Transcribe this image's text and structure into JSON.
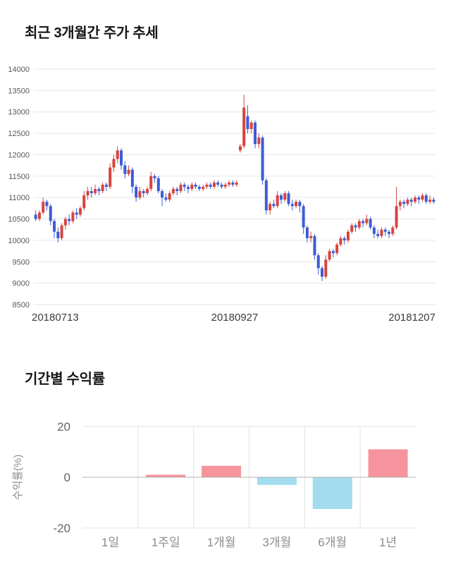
{
  "chart_data": [
    {
      "type": "candlestick",
      "title": "최근 3개월간 주가 추세",
      "ylim": [
        8500,
        14000
      ],
      "yticks": [
        8500,
        9000,
        9500,
        10000,
        10500,
        11000,
        11500,
        12000,
        12500,
        13000,
        13500,
        14000
      ],
      "xticks": [
        "20180713",
        "20180927",
        "20181207"
      ],
      "up_color": "#d6453f",
      "down_color": "#3d5cd6",
      "grid_color": "#e6e6e6",
      "ytick_color": "#595959",
      "xtick_color": "#3c3c3c",
      "candles": [
        [
          10600,
          10700,
          10450,
          10500
        ],
        [
          10500,
          10700,
          10450,
          10650
        ],
        [
          10650,
          11000,
          10600,
          10900
        ],
        [
          10900,
          10950,
          10700,
          10800
        ],
        [
          10800,
          10850,
          10350,
          10450
        ],
        [
          10450,
          10500,
          10050,
          10200
        ],
        [
          10200,
          10300,
          9950,
          10050
        ],
        [
          10050,
          10400,
          10000,
          10350
        ],
        [
          10350,
          10550,
          10250,
          10500
        ],
        [
          10500,
          10600,
          10350,
          10450
        ],
        [
          10450,
          10700,
          10400,
          10650
        ],
        [
          10650,
          10750,
          10500,
          10600
        ],
        [
          10600,
          10800,
          10550,
          10750
        ],
        [
          10750,
          11150,
          10700,
          11050
        ],
        [
          11050,
          11250,
          10950,
          11150
        ],
        [
          11150,
          11250,
          11000,
          11100
        ],
        [
          11100,
          11300,
          11050,
          11200
        ],
        [
          11200,
          11250,
          11050,
          11150
        ],
        [
          11150,
          11350,
          11100,
          11300
        ],
        [
          11300,
          11350,
          11150,
          11250
        ],
        [
          11250,
          11800,
          11200,
          11700
        ],
        [
          11700,
          12000,
          11600,
          11900
        ],
        [
          11900,
          12200,
          11800,
          12100
        ],
        [
          12100,
          12150,
          11650,
          11750
        ],
        [
          11750,
          11850,
          11450,
          11550
        ],
        [
          11550,
          11750,
          11500,
          11650
        ],
        [
          11650,
          11700,
          11100,
          11250
        ],
        [
          11250,
          11300,
          10900,
          11000
        ],
        [
          11000,
          11250,
          10950,
          11150
        ],
        [
          11150,
          11200,
          11000,
          11100
        ],
        [
          11100,
          11250,
          11050,
          11200
        ],
        [
          11200,
          11600,
          11150,
          11500
        ],
        [
          11500,
          11550,
          11350,
          11450
        ],
        [
          11450,
          11500,
          11100,
          11150
        ],
        [
          11150,
          11200,
          10800,
          11000
        ],
        [
          11000,
          11100,
          10900,
          10950
        ],
        [
          10950,
          11150,
          10900,
          11100
        ],
        [
          11100,
          11250,
          11050,
          11200
        ],
        [
          11200,
          11250,
          11050,
          11150
        ],
        [
          11150,
          11350,
          11100,
          11300
        ],
        [
          11300,
          11350,
          11150,
          11250
        ],
        [
          11250,
          11300,
          11100,
          11200
        ],
        [
          11200,
          11350,
          11150,
          11300
        ],
        [
          11300,
          11350,
          11200,
          11250
        ],
        [
          11250,
          11300,
          11150,
          11200
        ],
        [
          11200,
          11300,
          11150,
          11250
        ],
        [
          11250,
          11350,
          11200,
          11300
        ],
        [
          11300,
          11350,
          11200,
          11250
        ],
        [
          11250,
          11400,
          11200,
          11350
        ],
        [
          11350,
          11400,
          11250,
          11300
        ],
        [
          11300,
          11350,
          11200,
          11250
        ],
        [
          11250,
          11350,
          11200,
          11300
        ],
        [
          11300,
          11400,
          11250,
          11350
        ],
        [
          11350,
          11400,
          11250,
          11300
        ],
        [
          11300,
          11400,
          11250,
          11350
        ],
        [
          12100,
          12250,
          12050,
          12200
        ],
        [
          12200,
          13400,
          12150,
          13100
        ],
        [
          12900,
          13150,
          12500,
          12600
        ],
        [
          12600,
          12800,
          12500,
          12750
        ],
        [
          12750,
          12800,
          12150,
          12250
        ],
        [
          12250,
          12500,
          12150,
          12400
        ],
        [
          12400,
          12450,
          11300,
          11400
        ],
        [
          11400,
          11450,
          10600,
          10700
        ],
        [
          10700,
          10900,
          10600,
          10850
        ],
        [
          10850,
          10950,
          10750,
          10800
        ],
        [
          10800,
          11150,
          10750,
          11050
        ],
        [
          11050,
          11100,
          10850,
          10950
        ],
        [
          10950,
          11150,
          10900,
          11100
        ],
        [
          11100,
          11150,
          10800,
          10850
        ],
        [
          10850,
          10950,
          10700,
          10800
        ],
        [
          10800,
          10950,
          10750,
          10900
        ],
        [
          10900,
          10950,
          10650,
          10800
        ],
        [
          10800,
          10850,
          10150,
          10300
        ],
        [
          10300,
          10350,
          9950,
          10050
        ],
        [
          10050,
          10200,
          9950,
          10100
        ],
        [
          10100,
          10150,
          9550,
          9650
        ],
        [
          9650,
          9700,
          9200,
          9350
        ],
        [
          9350,
          9400,
          9050,
          9150
        ],
        [
          9150,
          9650,
          9100,
          9550
        ],
        [
          9550,
          9800,
          9500,
          9750
        ],
        [
          9750,
          9800,
          9600,
          9700
        ],
        [
          9700,
          9950,
          9650,
          9900
        ],
        [
          9900,
          10100,
          9850,
          10050
        ],
        [
          10050,
          10100,
          9900,
          10000
        ],
        [
          10000,
          10250,
          9950,
          10200
        ],
        [
          10200,
          10400,
          10150,
          10350
        ],
        [
          10350,
          10400,
          10200,
          10300
        ],
        [
          10300,
          10500,
          10250,
          10450
        ],
        [
          10450,
          10500,
          10300,
          10400
        ],
        [
          10400,
          10600,
          10350,
          10500
        ],
        [
          10500,
          10550,
          10250,
          10300
        ],
        [
          10300,
          10350,
          10050,
          10150
        ],
        [
          10150,
          10250,
          10050,
          10100
        ],
        [
          10100,
          10300,
          10050,
          10250
        ],
        [
          10250,
          10300,
          10100,
          10200
        ],
        [
          10200,
          10250,
          10050,
          10150
        ],
        [
          10150,
          10350,
          10100,
          10300
        ],
        [
          10300,
          11250,
          10250,
          10800
        ],
        [
          10800,
          10950,
          10700,
          10900
        ],
        [
          10900,
          10950,
          10750,
          10850
        ],
        [
          10850,
          11000,
          10800,
          10950
        ],
        [
          10950,
          11000,
          10800,
          10900
        ],
        [
          10900,
          11050,
          10850,
          11000
        ],
        [
          11000,
          11050,
          10850,
          10950
        ],
        [
          10950,
          11100,
          10900,
          11050
        ],
        [
          11050,
          11100,
          10850,
          10900
        ],
        [
          10900,
          11050,
          10850,
          10950
        ],
        [
          10950,
          11000,
          10850,
          10900
        ]
      ]
    },
    {
      "type": "bar",
      "title": "기간별 수익률",
      "ylabel": "수익률(%)",
      "categories": [
        "1일",
        "1주일",
        "1개월",
        "3개월",
        "6개월",
        "1년"
      ],
      "values": [
        0,
        1,
        4.5,
        -3,
        -12.5,
        11
      ],
      "ylim": [
        -20,
        20
      ],
      "yticks": [
        20,
        0,
        -20
      ],
      "positive_color": "#f5949c",
      "negative_color": "#a3dcef",
      "grid_color": "#e3e3e3",
      "zero_line_color": "#b0b0b0",
      "tick_color": "#666666",
      "label_color": "#8c8c8c"
    }
  ]
}
